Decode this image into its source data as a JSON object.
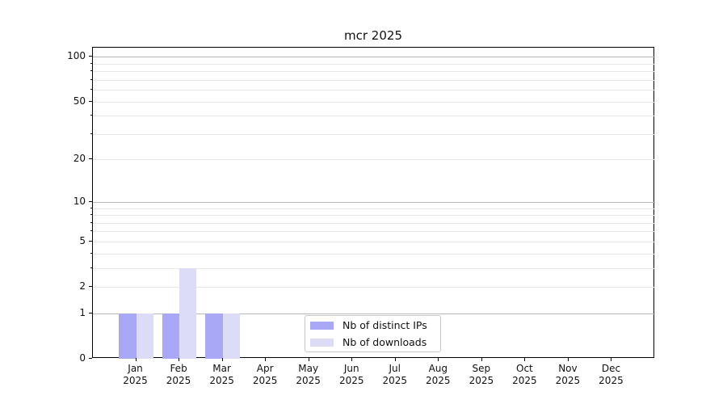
{
  "title": "mcr 2025",
  "colors": {
    "distinct_ips_bar": "#a8a8f6",
    "downloads_bar": "#dcdcf6",
    "grid_major": "#b7b7b7",
    "grid_minor": "#e7e7e7",
    "axis": "#000000",
    "legend_border": "#c9c9c9"
  },
  "legend": {
    "position": "lower center",
    "items": [
      {
        "label": "Nb of distinct IPs"
      },
      {
        "label": "Nb of downloads"
      }
    ]
  },
  "chart_data": {
    "type": "bar",
    "title": "mcr 2025",
    "categories": [
      "Jan 2025",
      "Feb 2025",
      "Mar 2025",
      "Apr 2025",
      "May 2025",
      "Jun 2025",
      "Jul 2025",
      "Aug 2025",
      "Sep 2025",
      "Oct 2025",
      "Nov 2025",
      "Dec 2025"
    ],
    "series": [
      {
        "name": "Nb of distinct IPs",
        "color": "#a8a8f6",
        "values": [
          1,
          1,
          1,
          0,
          0,
          0,
          0,
          0,
          0,
          0,
          0,
          0
        ]
      },
      {
        "name": "Nb of downloads",
        "color": "#dcdcf6",
        "values": [
          1,
          3,
          1,
          0,
          0,
          0,
          0,
          0,
          0,
          0,
          0,
          0
        ]
      }
    ],
    "xlabel": "",
    "ylabel": "",
    "yscale": "log1p",
    "ylim": [
      0,
      115
    ],
    "y_tick_values": [
      0,
      1,
      2,
      5,
      10,
      20,
      50,
      100
    ],
    "y_major_grid_values": [
      1,
      10,
      100
    ],
    "y_minor_grid_values": [
      2,
      3,
      4,
      5,
      6,
      7,
      8,
      9,
      20,
      30,
      40,
      50,
      60,
      70,
      80,
      90
    ],
    "grid": true,
    "legend_position": "lower center"
  }
}
